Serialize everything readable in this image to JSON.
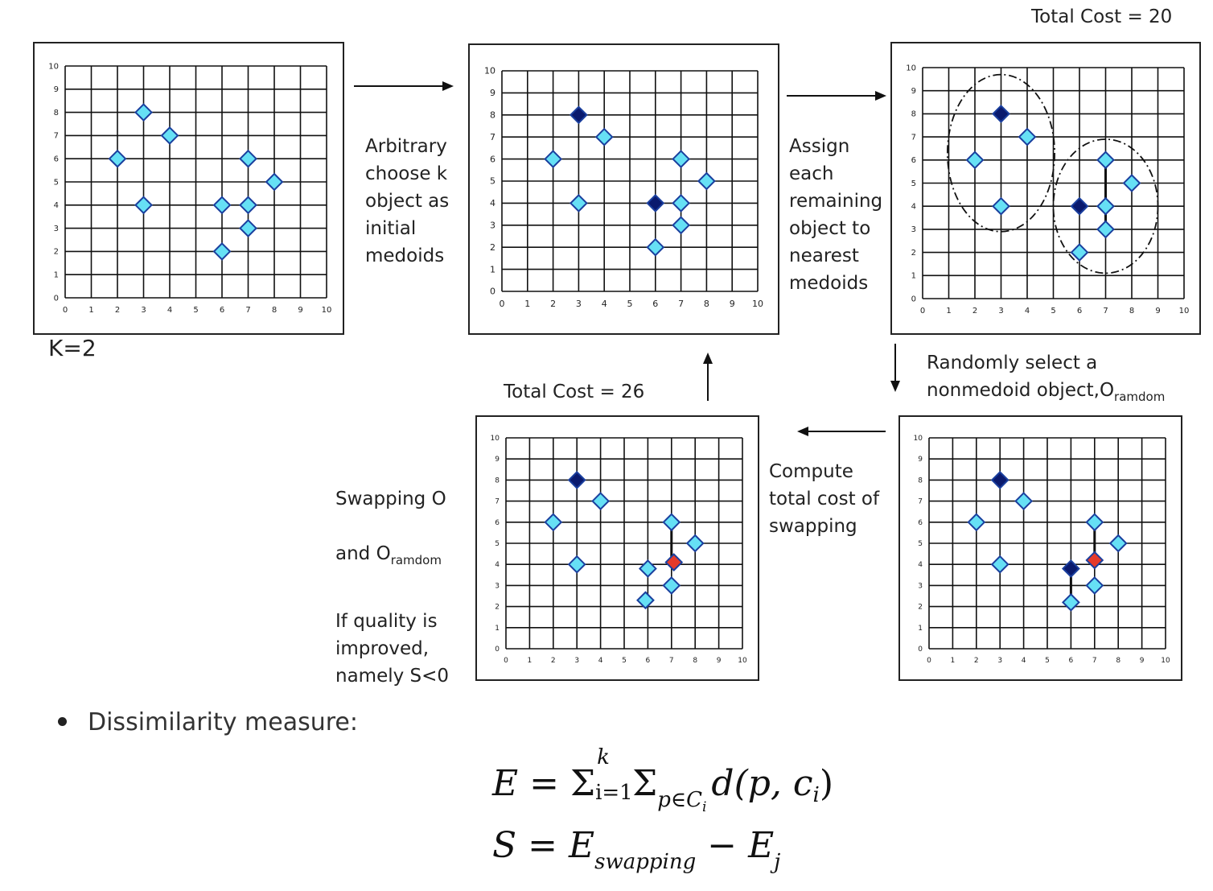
{
  "labels": {
    "k": "K=2",
    "total_cost_top": "Total Cost = 20",
    "total_cost_bottom": "Total Cost = 26"
  },
  "steps": {
    "step1": "Arbitrary\nchoose k\nobject as\ninitial\nmedoids",
    "step2": "Assign\neach\nremaining\nobject to\nnearest\nmedoids",
    "step3_main": "Randomly select a\nnonmedoid object,O",
    "step3_sub": "ramdom",
    "step4": "Compute\ntotal cost of\nswapping",
    "step5_line1": "Swapping O",
    "step5_line2_main": "and O",
    "step5_line2_sub": "ramdom",
    "step5_rest": "If quality is\nimproved,\nnamely S<0"
  },
  "bullet": "Dissimilarity measure:",
  "formula": {
    "line1_lhs": "E",
    "line1_eq": " = ",
    "sigma": "Σ",
    "sup_k": "k",
    "sub_i1": "i=1",
    "sub_pc": "p∈C",
    "sub_i": "i",
    "d": "d",
    "args": "(p, c",
    "args_end": ")",
    "line2_lhs": "S",
    "line2_eq": " = ",
    "E": "E",
    "sub_swapping": "swapping",
    "minus": " − ",
    "sub_j": "j"
  },
  "colors": {
    "point": "#66e0f5",
    "medoid": "#0a1a6e",
    "random": "#e53a2a",
    "point_stroke": "#1a3f9e"
  },
  "chart_data": [
    {
      "type": "scatter",
      "name": "initial objects",
      "xlim": [
        0,
        10
      ],
      "ylim": [
        0,
        10
      ],
      "points": [
        [
          2,
          6
        ],
        [
          3,
          8
        ],
        [
          3,
          4
        ],
        [
          4,
          7
        ],
        [
          6,
          2
        ],
        [
          6,
          4
        ],
        [
          7,
          3
        ],
        [
          7,
          4
        ],
        [
          7,
          6
        ],
        [
          8,
          5
        ]
      ],
      "medoids": [],
      "random": []
    },
    {
      "type": "scatter",
      "name": "initial medoids",
      "xlim": [
        0,
        10
      ],
      "ylim": [
        0,
        10
      ],
      "points": [
        [
          2,
          6
        ],
        [
          3,
          4
        ],
        [
          4,
          7
        ],
        [
          6,
          2
        ],
        [
          7,
          3
        ],
        [
          7,
          4
        ],
        [
          7,
          6
        ],
        [
          8,
          5
        ]
      ],
      "medoids": [
        [
          3,
          8
        ],
        [
          6,
          4
        ]
      ],
      "random": []
    },
    {
      "type": "scatter",
      "name": "clusters assigned",
      "xlim": [
        0,
        10
      ],
      "ylim": [
        0,
        10
      ],
      "points": [
        [
          2,
          6
        ],
        [
          3,
          4
        ],
        [
          4,
          7
        ],
        [
          6,
          2
        ],
        [
          7,
          3
        ],
        [
          7,
          4
        ],
        [
          7,
          6
        ],
        [
          8,
          5
        ]
      ],
      "medoids": [
        [
          3,
          8
        ],
        [
          6,
          4
        ]
      ],
      "random": []
    },
    {
      "type": "scatter",
      "name": "random selected",
      "xlim": [
        0,
        10
      ],
      "ylim": [
        0,
        10
      ],
      "points": [
        [
          2,
          6
        ],
        [
          3,
          4
        ],
        [
          4,
          7
        ],
        [
          6,
          2.2
        ],
        [
          7,
          3
        ],
        [
          7,
          6
        ],
        [
          8,
          5
        ]
      ],
      "medoids": [
        [
          3,
          8
        ],
        [
          6,
          3.8
        ]
      ],
      "random": [
        [
          7,
          4.2
        ]
      ]
    },
    {
      "type": "scatter",
      "name": "swapped",
      "xlim": [
        0,
        10
      ],
      "ylim": [
        0,
        10
      ],
      "points": [
        [
          2,
          6
        ],
        [
          3,
          4
        ],
        [
          4,
          7
        ],
        [
          6,
          3.8
        ],
        [
          5.9,
          2.3
        ],
        [
          7,
          3
        ],
        [
          7,
          6
        ],
        [
          8,
          5
        ]
      ],
      "medoids": [
        [
          3,
          8
        ]
      ],
      "random": [
        [
          7.1,
          4.1
        ]
      ]
    }
  ]
}
